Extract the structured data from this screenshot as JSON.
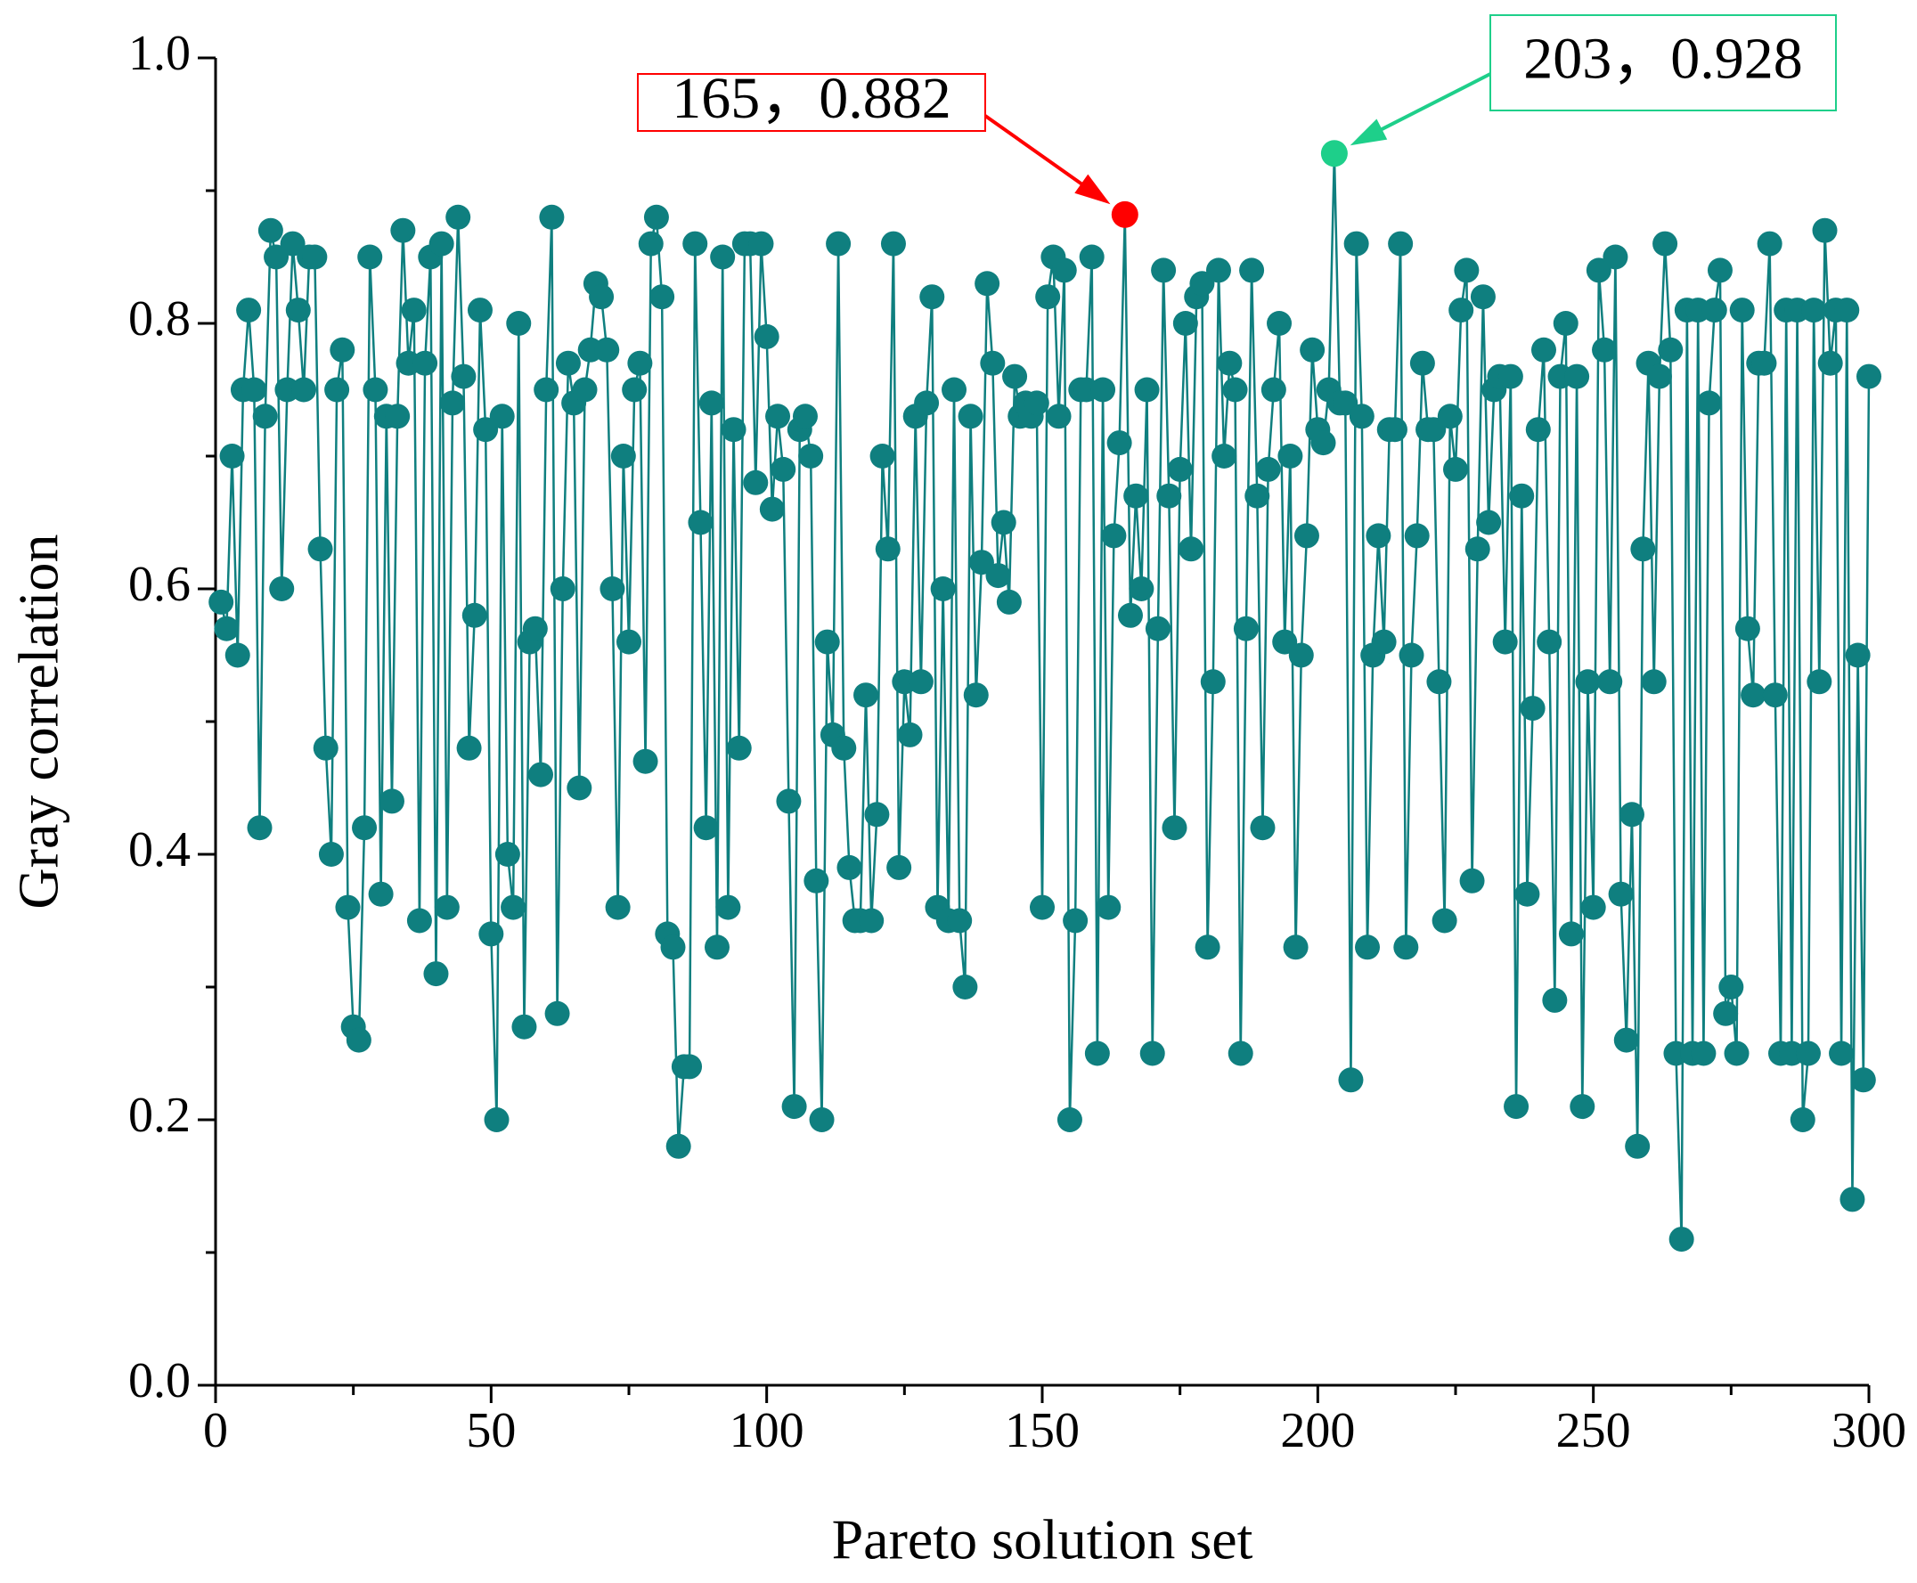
{
  "chart_data": {
    "type": "line",
    "xlabel": "Pareto solution set",
    "ylabel": "Gray correlation",
    "xlim": [
      0,
      300
    ],
    "xticks": [
      0,
      50,
      100,
      150,
      200,
      250,
      300
    ],
    "ylim": [
      0,
      1
    ],
    "yticks": [
      {
        "value": 0,
        "label": "0.0"
      },
      0.2,
      0.4,
      0.6,
      0.8,
      {
        "value": 1,
        "label": "1.0"
      }
    ],
    "x": [
      1,
      2,
      3,
      4,
      5,
      6,
      7,
      8,
      9,
      10,
      11,
      12,
      13,
      14,
      15,
      16,
      17,
      18,
      19,
      20,
      21,
      22,
      23,
      24,
      25,
      26,
      27,
      28,
      29,
      30,
      31,
      32,
      33,
      34,
      35,
      36,
      37,
      38,
      39,
      40,
      41,
      42,
      43,
      44,
      45,
      46,
      47,
      48,
      49,
      50,
      51,
      52,
      53,
      54,
      55,
      56,
      57,
      58,
      59,
      60,
      61,
      62,
      63,
      64,
      65,
      66,
      67,
      68,
      69,
      70,
      71,
      72,
      73,
      74,
      75,
      76,
      77,
      78,
      79,
      80,
      81,
      82,
      83,
      84,
      85,
      86,
      87,
      88,
      89,
      90,
      91,
      92,
      93,
      94,
      95,
      96,
      97,
      98,
      99,
      100,
      101,
      102,
      103,
      104,
      105,
      106,
      107,
      108,
      109,
      110,
      111,
      112,
      113,
      114,
      115,
      116,
      117,
      118,
      119,
      120,
      121,
      122,
      123,
      124,
      125,
      126,
      127,
      128,
      129,
      130,
      131,
      132,
      133,
      134,
      135,
      136,
      137,
      138,
      139,
      140,
      141,
      142,
      143,
      144,
      145,
      146,
      147,
      148,
      149,
      150,
      151,
      152,
      153,
      154,
      155,
      156,
      157,
      158,
      159,
      160,
      161,
      162,
      163,
      164,
      165,
      166,
      167,
      168,
      169,
      170,
      171,
      172,
      173,
      174,
      175,
      176,
      177,
      178,
      179,
      180,
      181,
      182,
      183,
      184,
      185,
      186,
      187,
      188,
      189,
      190,
      191,
      192,
      193,
      194,
      195,
      196,
      197,
      198,
      199,
      200,
      201,
      202,
      203,
      204,
      205,
      206,
      207,
      208,
      209,
      210,
      211,
      212,
      213,
      214,
      215,
      216,
      217,
      218,
      219,
      220,
      221,
      222,
      223,
      224,
      225,
      226,
      227,
      228,
      229,
      230,
      231,
      232,
      233,
      234,
      235,
      236,
      237,
      238,
      239,
      240,
      241,
      242,
      243,
      244,
      245,
      246,
      247,
      248,
      249,
      250,
      251,
      252,
      253,
      254,
      255,
      256,
      257,
      258,
      259,
      260,
      261,
      262,
      263,
      264,
      265,
      266,
      267,
      268,
      269,
      270,
      271,
      272,
      273,
      274,
      275,
      276,
      277,
      278,
      279,
      280,
      281,
      282,
      283,
      284,
      285,
      286,
      287,
      288,
      289,
      290,
      291,
      292,
      293,
      294,
      295,
      296,
      297,
      298,
      299,
      300
    ],
    "series": [
      {
        "color": "#0f7f7f",
        "values": [
          0.59,
          0.57,
          0.7,
          0.55,
          0.75,
          0.81,
          0.75,
          0.42,
          0.73,
          0.87,
          0.85,
          0.6,
          0.75,
          0.86,
          0.81,
          0.75,
          0.85,
          0.85,
          0.63,
          0.48,
          0.4,
          0.75,
          0.78,
          0.36,
          0.27,
          0.26,
          0.42,
          0.85,
          0.75,
          0.37,
          0.73,
          0.44,
          0.73,
          0.87,
          0.77,
          0.81,
          0.35,
          0.77,
          0.85,
          0.31,
          0.86,
          0.36,
          0.74,
          0.88,
          0.76,
          0.48,
          0.58,
          0.81,
          0.72,
          0.34,
          0.2,
          0.73,
          0.4,
          0.36,
          0.8,
          0.27,
          0.56,
          0.57,
          0.46,
          0.75,
          0.88,
          0.28,
          0.6,
          0.77,
          0.74,
          0.45,
          0.75,
          0.78,
          0.83,
          0.82,
          0.78,
          0.6,
          0.36,
          0.7,
          0.56,
          0.75,
          0.77,
          0.47,
          0.86,
          0.88,
          0.82,
          0.34,
          0.33,
          0.18,
          0.24,
          0.24,
          0.86,
          0.65,
          0.42,
          0.74,
          0.33,
          0.85,
          0.36,
          0.72,
          0.48,
          0.86,
          0.86,
          0.68,
          0.86,
          0.79,
          0.66,
          0.73,
          0.69,
          0.44,
          0.21,
          0.72,
          0.73,
          0.7,
          0.38,
          0.2,
          0.56,
          0.49,
          0.86,
          0.48,
          0.39,
          0.35,
          0.35,
          0.52,
          0.35,
          0.43,
          0.7,
          0.63,
          0.86,
          0.39,
          0.53,
          0.49,
          0.73,
          0.53,
          0.74,
          0.82,
          0.36,
          0.6,
          0.35,
          0.75,
          0.35,
          0.3,
          0.73,
          0.52,
          0.62,
          0.83,
          0.77,
          0.61,
          0.65,
          0.59,
          0.76,
          0.73,
          0.74,
          0.73,
          0.74,
          0.36,
          0.82,
          0.85,
          0.73,
          0.84,
          0.2,
          0.35,
          0.75,
          0.75,
          0.85,
          0.25,
          0.75,
          0.36,
          0.64,
          0.71,
          0.882,
          0.58,
          0.67,
          0.6,
          0.75,
          0.25,
          0.57,
          0.84,
          0.67,
          0.42,
          0.69,
          0.8,
          0.63,
          0.82,
          0.83,
          0.33,
          0.53,
          0.84,
          0.7,
          0.77,
          0.75,
          0.25,
          0.57,
          0.84,
          0.67,
          0.42,
          0.69,
          0.75,
          0.8,
          0.56,
          0.7,
          0.33,
          0.55,
          0.64,
          0.78,
          0.72,
          0.71,
          0.75,
          0.928,
          0.74,
          0.74,
          0.23,
          0.86,
          0.73,
          0.33,
          0.55,
          0.64,
          0.56,
          0.72,
          0.72,
          0.86,
          0.33,
          0.55,
          0.64,
          0.77,
          0.72,
          0.72,
          0.53,
          0.35,
          0.73,
          0.69,
          0.81,
          0.84,
          0.38,
          0.63,
          0.82,
          0.65,
          0.75,
          0.76,
          0.56,
          0.76,
          0.21,
          0.67,
          0.37,
          0.51,
          0.72,
          0.78,
          0.56,
          0.29,
          0.76,
          0.8,
          0.34,
          0.76,
          0.21,
          0.53,
          0.36,
          0.84,
          0.78,
          0.53,
          0.85,
          0.37,
          0.26,
          0.43,
          0.18,
          0.63,
          0.77,
          0.53,
          0.76,
          0.86,
          0.78,
          0.25,
          0.11,
          0.81,
          0.25,
          0.81,
          0.25,
          0.74,
          0.81,
          0.84,
          0.28,
          0.3,
          0.25,
          0.81,
          0.57,
          0.52,
          0.77,
          0.77,
          0.86,
          0.52,
          0.25,
          0.81,
          0.25,
          0.81,
          0.2,
          0.25,
          0.81,
          0.53,
          0.87,
          0.77,
          0.81,
          0.25,
          0.81,
          0.14,
          0.55,
          0.23,
          0.76
        ]
      }
    ],
    "highlights": [
      {
        "x": 165,
        "y": 0.882,
        "label": "165，0.882",
        "color": "#ff0000"
      },
      {
        "x": 203,
        "y": 0.928,
        "label": "203，0.928",
        "color": "#1ecf8a"
      }
    ]
  }
}
